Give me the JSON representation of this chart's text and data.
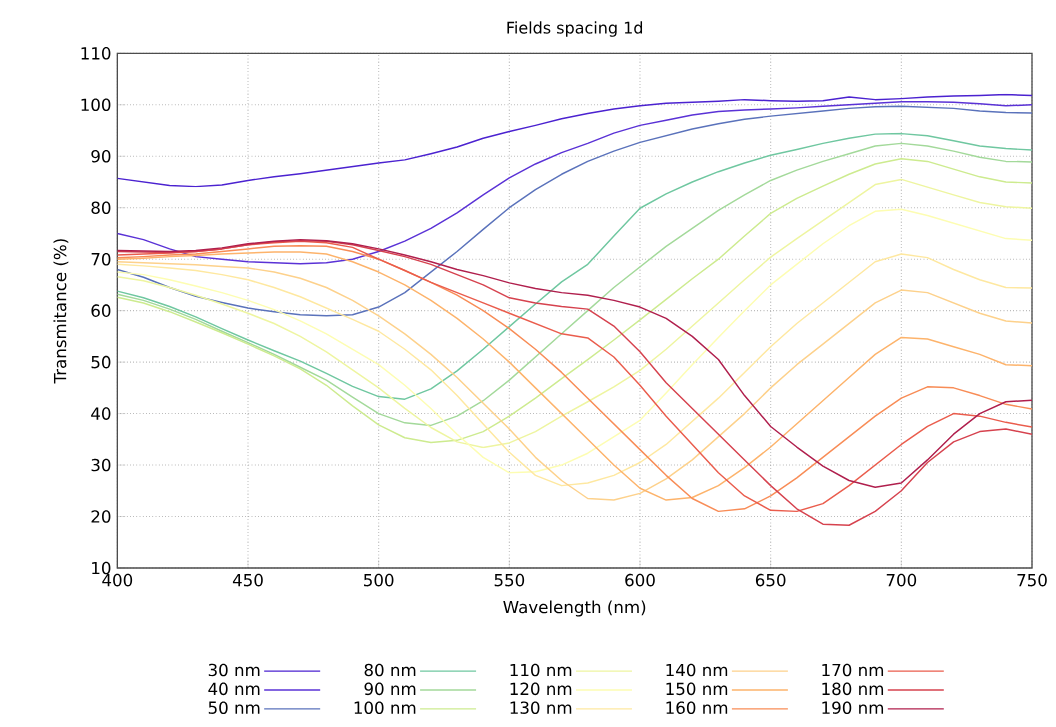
{
  "chart_data": {
    "type": "line",
    "title": "Fields spacing 1d",
    "xlabel": "Wavelength (nm)",
    "ylabel": "Transmitance (%)",
    "xlim": [
      400,
      750
    ],
    "ylim": [
      10,
      110
    ],
    "xticks": [
      400,
      450,
      500,
      550,
      600,
      650,
      700,
      750
    ],
    "yticks": [
      10,
      20,
      30,
      40,
      50,
      60,
      70,
      80,
      90,
      100,
      110
    ],
    "grid": true,
    "legend": "bottom",
    "x": [
      400,
      410,
      420,
      430,
      440,
      450,
      460,
      470,
      480,
      490,
      500,
      510,
      520,
      530,
      540,
      550,
      560,
      570,
      580,
      590,
      600,
      610,
      620,
      630,
      640,
      650,
      660,
      670,
      680,
      690,
      700,
      710,
      720,
      730,
      740,
      750
    ],
    "series": [
      {
        "name": "30 nm",
        "color": "#4b22d0",
        "values": [
          85.7,
          85,
          84.3,
          84.1,
          84.4,
          85.3,
          86,
          86.6,
          87.3,
          88,
          88.7,
          89.3,
          90.5,
          91.8,
          93.5,
          94.8,
          96,
          97.3,
          98.3,
          99.2,
          99.8,
          100.3,
          100.5,
          100.7,
          101,
          100.8,
          100.7,
          100.8,
          101.5,
          101,
          101.2,
          101.5,
          101.7,
          101.8,
          102,
          101.8
        ]
      },
      {
        "name": "40 nm",
        "color": "#5a32d6",
        "values": [
          75,
          73.8,
          72,
          70.5,
          70,
          69.5,
          69.3,
          69.1,
          69.3,
          70,
          71.5,
          73.5,
          76,
          79,
          82.5,
          85.8,
          88.5,
          90.7,
          92.5,
          94.5,
          96,
          97,
          98,
          98.7,
          99,
          99.2,
          99.4,
          99.7,
          100,
          100.3,
          100.6,
          100.6,
          100.5,
          100.2,
          99.8,
          100
        ]
      },
      {
        "name": "50 nm",
        "color": "#5a72bb",
        "values": [
          68,
          66.5,
          64.5,
          62.8,
          61.6,
          60.5,
          59.8,
          59.2,
          59,
          59.2,
          60.7,
          63.5,
          67.5,
          71.5,
          75.8,
          80,
          83.5,
          86.5,
          89,
          91,
          92.7,
          94,
          95.3,
          96.3,
          97.2,
          97.8,
          98.3,
          98.8,
          99.3,
          99.6,
          99.7,
          99.5,
          99.3,
          98.8,
          98.5,
          98.4
        ]
      },
      {
        "name": "80 nm",
        "color": "#6fc7a0",
        "values": [
          63.8,
          62.5,
          60.8,
          58.8,
          56.5,
          54.3,
          52.2,
          50.2,
          47.8,
          45.3,
          43.3,
          42.8,
          44.8,
          48.3,
          52.5,
          56.9,
          61.3,
          65.6,
          69,
          74.5,
          79.9,
          82.7,
          85,
          87,
          88.7,
          90.2,
          91.3,
          92.5,
          93.5,
          94.3,
          94.4,
          94,
          93,
          92,
          91.5,
          91.2
        ]
      },
      {
        "name": "90 nm",
        "color": "#a3d99a",
        "values": [
          63.2,
          62,
          60.3,
          58.3,
          56,
          53.8,
          51.5,
          49,
          46.5,
          43.2,
          40,
          38.2,
          37.7,
          39.5,
          42.5,
          46.5,
          51,
          55.5,
          60,
          64.5,
          68.5,
          72.5,
          76,
          79.5,
          82.5,
          85.3,
          87.3,
          89,
          90.5,
          92,
          92.5,
          92,
          91,
          89.8,
          89,
          88.9
        ]
      },
      {
        "name": "100 nm",
        "color": "#cdeb8f",
        "values": [
          62.6,
          61.5,
          59.8,
          57.8,
          55.7,
          53.5,
          51.2,
          48.7,
          45.5,
          41.5,
          37.8,
          35.3,
          34.4,
          34.8,
          36.5,
          39.5,
          43,
          46.8,
          50.5,
          54.3,
          58.2,
          62.2,
          66.2,
          70,
          74.5,
          78.9,
          81.8,
          84.2,
          86.5,
          88.5,
          89.5,
          89,
          87.5,
          86,
          85,
          84.8
        ]
      },
      {
        "name": "110 nm",
        "color": "#eef5a0",
        "values": [
          66.6,
          65.8,
          64.5,
          63,
          61.3,
          59.5,
          57.5,
          55,
          52,
          48.5,
          45,
          41,
          37.3,
          34.5,
          33.4,
          34.3,
          36.5,
          39.5,
          42.3,
          45.2,
          48.4,
          52.5,
          57,
          61.5,
          66,
          70.4,
          74,
          77.5,
          81,
          84.5,
          85.5,
          84,
          82.5,
          81,
          80.2,
          79.9
        ]
      },
      {
        "name": "120 nm",
        "color": "#fdfdb2",
        "values": [
          67.5,
          67,
          66,
          64.8,
          63.5,
          62,
          60.2,
          58,
          55.5,
          52.5,
          49.5,
          45.5,
          41,
          36,
          31.5,
          28.5,
          28.7,
          30,
          32.3,
          35.5,
          38.7,
          44,
          49.5,
          54.8,
          60,
          65,
          69,
          73,
          76.5,
          79.3,
          79.7,
          78.5,
          77,
          75.5,
          74,
          73.7
        ]
      },
      {
        "name": "130 nm",
        "color": "#fee8a0",
        "values": [
          69,
          68.7,
          68.3,
          67.8,
          67,
          66,
          64.5,
          62.7,
          60.5,
          58.3,
          56,
          52.5,
          48.5,
          43.5,
          38,
          32.5,
          28,
          26,
          26.5,
          28,
          30.5,
          34,
          38.5,
          43,
          48,
          53,
          57.5,
          61.5,
          65.5,
          69.5,
          71,
          70.3,
          68,
          66,
          64.5,
          64.4
        ]
      },
      {
        "name": "140 nm",
        "color": "#fdd18b",
        "values": [
          69.5,
          69.3,
          69.1,
          68.9,
          68.6,
          68.3,
          67.5,
          66.3,
          64.5,
          62,
          59,
          55.5,
          51.5,
          47,
          42,
          37,
          31.5,
          27,
          23.5,
          23.2,
          24.5,
          27.3,
          31,
          35.5,
          40,
          45,
          49.5,
          53.5,
          57.5,
          61.5,
          64,
          63.5,
          61.5,
          59.5,
          58,
          57.6
        ]
      },
      {
        "name": "150 nm",
        "color": "#fdb36b",
        "values": [
          70,
          70.2,
          70.5,
          70.7,
          71,
          71.2,
          71.4,
          71.4,
          71,
          69.5,
          67.5,
          65,
          62,
          58.5,
          54.5,
          50,
          45,
          40,
          35,
          30,
          25.5,
          23.2,
          23.7,
          26,
          29.5,
          33.5,
          38,
          42.5,
          47,
          51.5,
          54.8,
          54.5,
          53,
          51.5,
          49.5,
          49.3
        ]
      },
      {
        "name": "160 nm",
        "color": "#f88c56",
        "values": [
          70.3,
          70.5,
          70.8,
          71,
          71.5,
          72,
          72.5,
          72.6,
          72.5,
          71.5,
          70,
          67.8,
          65.5,
          63,
          60,
          56.5,
          52.5,
          48,
          43,
          38,
          33,
          28,
          23.5,
          21,
          21.5,
          24,
          27.5,
          31.5,
          35.5,
          39.5,
          43,
          45.2,
          45,
          43.5,
          41.8,
          40.9
        ]
      },
      {
        "name": "170 nm",
        "color": "#ea5c4c",
        "values": [
          70.8,
          71,
          71.2,
          71.5,
          72,
          72.8,
          73.2,
          73.5,
          73.2,
          72.3,
          70,
          67.8,
          65.5,
          63.5,
          61.5,
          59.5,
          57.5,
          55.5,
          54.7,
          51,
          45.5,
          39.5,
          34,
          28.5,
          24,
          21.2,
          21,
          22.5,
          26,
          30,
          34,
          37.5,
          40,
          39.5,
          38.3,
          37.4
        ]
      },
      {
        "name": "180 nm",
        "color": "#d6424e",
        "values": [
          71.5,
          71.4,
          71.3,
          71.5,
          72,
          72.8,
          73.4,
          73.6,
          73.5,
          72.8,
          71.7,
          70.5,
          69,
          67,
          65,
          62.5,
          61.5,
          60.8,
          60.3,
          57,
          52,
          46,
          41,
          36,
          31,
          26,
          21.5,
          18.5,
          18.3,
          21,
          25,
          30.5,
          34.5,
          36.5,
          37,
          36
        ]
      },
      {
        "name": "190 nm",
        "color": "#b01f4d",
        "values": [
          71.7,
          71.6,
          71.5,
          71.7,
          72.2,
          73,
          73.5,
          73.8,
          73.6,
          73,
          72,
          70.8,
          69.5,
          68,
          66.8,
          65.4,
          64.3,
          63.5,
          63,
          62,
          60.7,
          58.5,
          55,
          50.5,
          43.5,
          37.5,
          33.5,
          29.8,
          27,
          25.7,
          26.5,
          31,
          36,
          40,
          42.3,
          42.6
        ]
      }
    ]
  }
}
